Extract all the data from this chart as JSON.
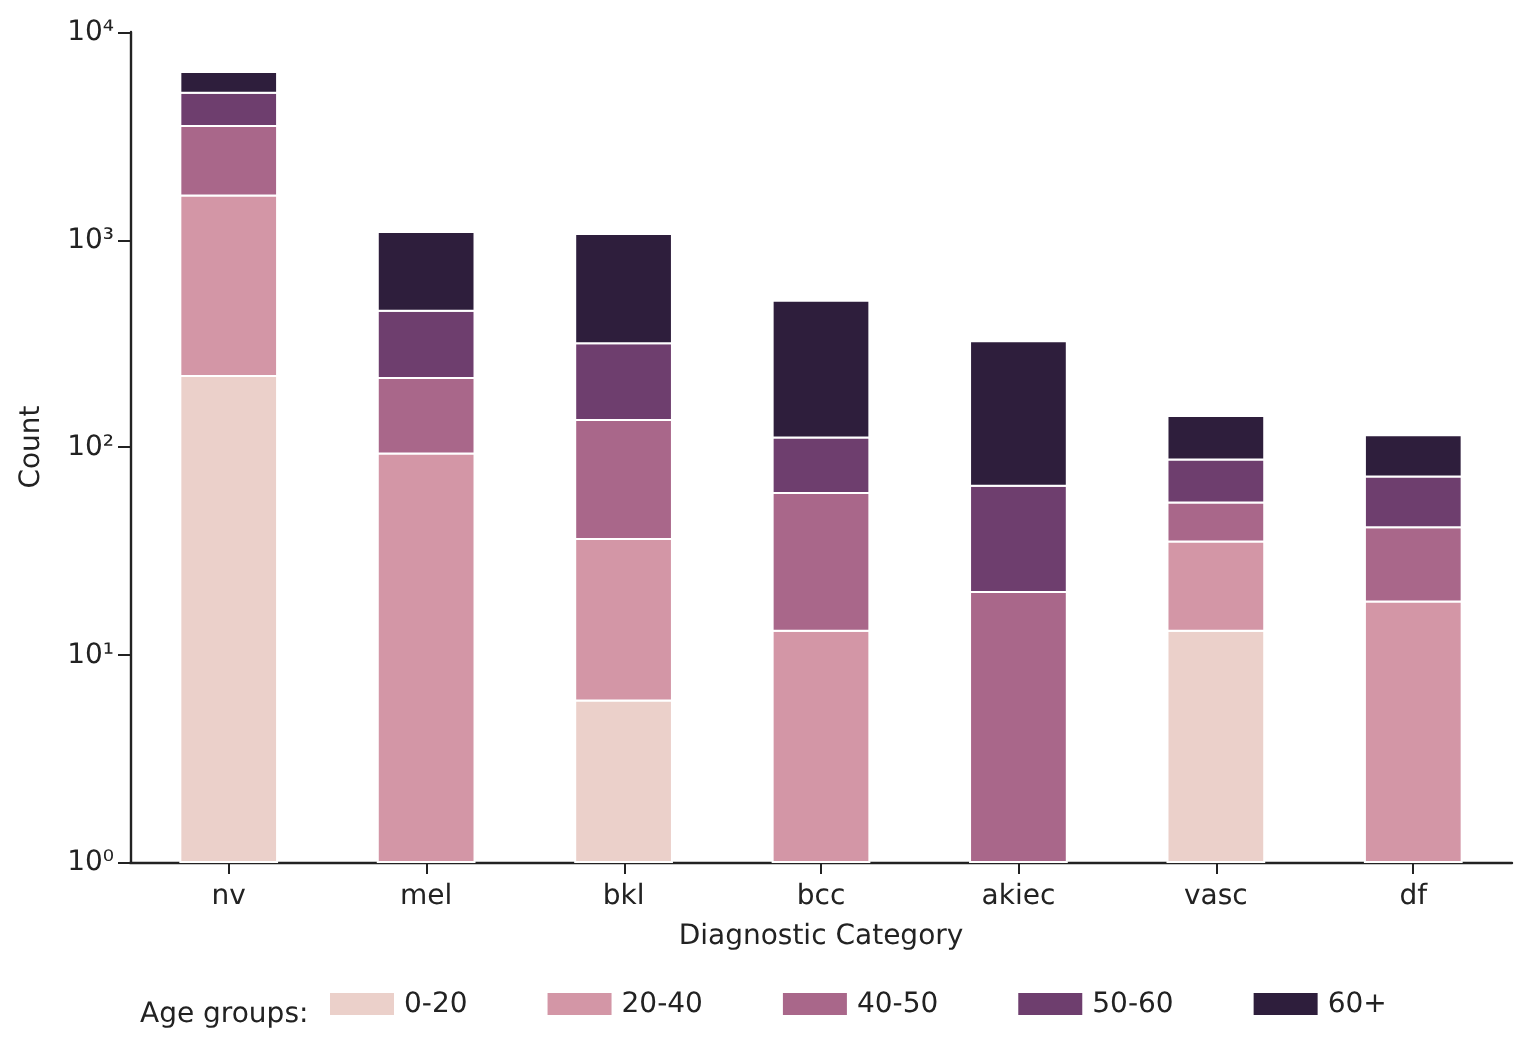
{
  "chart_data": {
    "type": "bar",
    "stacked": true,
    "log": "y",
    "xlabel": "Diagnostic Category",
    "ylabel": "Count",
    "legend_title": "Age groups:",
    "legend": "bottom",
    "grid": false,
    "categories": [
      "nv",
      "mel",
      "bkl",
      "bcc",
      "akiec",
      "vasc",
      "df"
    ],
    "ylim": [
      1,
      10000
    ],
    "yticks": [
      {
        "value": 1,
        "label": "10⁰"
      },
      {
        "value": 10,
        "label": "10¹"
      },
      {
        "value": 100,
        "label": "10²"
      },
      {
        "value": 1000,
        "label": "10³"
      },
      {
        "value": 10000,
        "label": "10⁴"
      }
    ],
    "series": [
      {
        "name": "0-20",
        "color": "#ebd0ca",
        "values": [
          220,
          null,
          6,
          null,
          null,
          13,
          null
        ]
      },
      {
        "name": "20-40",
        "color": "#d396a6",
        "values": [
          1410,
          93,
          30,
          13,
          null,
          22,
          18
        ]
      },
      {
        "name": "40-50",
        "color": "#a9678a",
        "values": [
          1890,
          122,
          99,
          47,
          20,
          19,
          23
        ]
      },
      {
        "name": "50-60",
        "color": "#6e3e6e",
        "values": [
          1580,
          239,
          181,
          51,
          45,
          33,
          31
        ]
      },
      {
        "name": "60+",
        "color": "#2e1e3c",
        "values": [
          1310,
          633,
          747,
          396,
          258,
          54,
          42
        ]
      }
    ]
  }
}
